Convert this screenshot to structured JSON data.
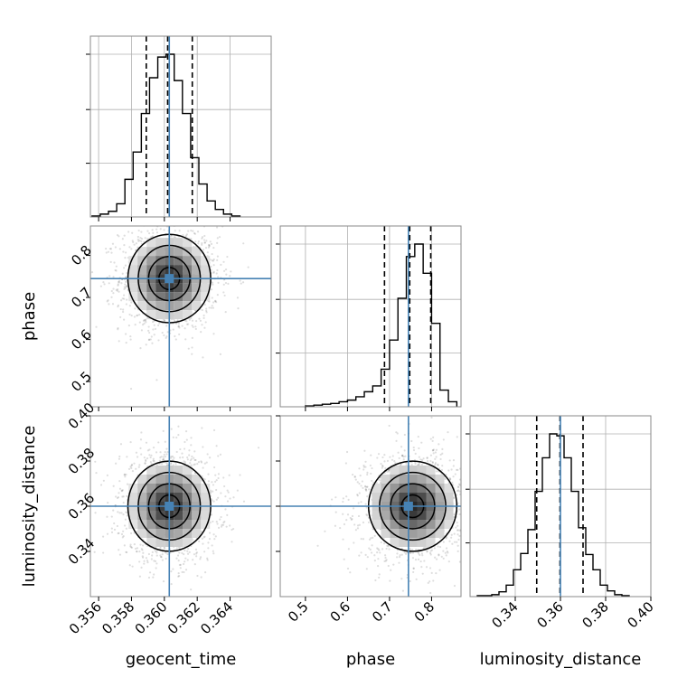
{
  "chart_data": {
    "type": "corner",
    "parameters": [
      {
        "name": "geocent_time",
        "label": "geocent_time",
        "range": [
          0.3555,
          0.3665
        ],
        "ticks": [
          0.356,
          0.358,
          0.36,
          0.362,
          0.364
        ],
        "tick_labels": [
          "0.356",
          "0.358",
          "0.360",
          "0.362",
          "0.364"
        ],
        "truth": 0.3603,
        "quantiles": [
          0.3589,
          0.3602,
          0.3617
        ]
      },
      {
        "name": "phase",
        "label": "phase",
        "range": [
          0.44,
          0.87
        ],
        "ticks": [
          0.5,
          0.6,
          0.7,
          0.8
        ],
        "tick_labels": [
          "0.5",
          "0.6",
          "0.7",
          "0.8"
        ],
        "truth": 0.745,
        "quantiles": [
          0.688,
          0.748,
          0.798
        ]
      },
      {
        "name": "luminosity_distance",
        "label": "luminosity_distance",
        "range": [
          0.32,
          0.4
        ],
        "ticks": [
          0.34,
          0.36,
          0.38,
          0.4
        ],
        "tick_labels": [
          "0.34",
          "0.36",
          "0.38",
          "0.40"
        ],
        "truth": 0.36,
        "quantiles": [
          0.3495,
          0.3598,
          0.37
        ]
      }
    ],
    "histograms": [
      {
        "parameter": "geocent_time",
        "bin_edges": [
          0.3556,
          0.3561,
          0.3566,
          0.3571,
          0.3576,
          0.3581,
          0.3586,
          0.3591,
          0.3596,
          0.3601,
          0.3606,
          0.3611,
          0.3616,
          0.3621,
          0.3626,
          0.3631,
          0.3636,
          0.3641,
          0.3646
        ],
        "counts": [
          1,
          3,
          6,
          14,
          40,
          69,
          110,
          148,
          170,
          173,
          145,
          110,
          63,
          35,
          17,
          8,
          3,
          1
        ]
      },
      {
        "parameter": "phase",
        "bin_edges": [
          0.5,
          0.52,
          0.54,
          0.56,
          0.58,
          0.6,
          0.62,
          0.64,
          0.66,
          0.68,
          0.7,
          0.72,
          0.74,
          0.76,
          0.78,
          0.8,
          0.82,
          0.84,
          0.86
        ],
        "counts": [
          1,
          2,
          3,
          4,
          6,
          8,
          12,
          18,
          25,
          45,
          80,
          130,
          180,
          195,
          160,
          100,
          20,
          6
        ]
      },
      {
        "parameter": "luminosity_distance",
        "bin_edges": [
          0.3232,
          0.3264,
          0.3296,
          0.3328,
          0.336,
          0.3392,
          0.3424,
          0.3456,
          0.3488,
          0.352,
          0.3552,
          0.3584,
          0.3616,
          0.3648,
          0.368,
          0.3712,
          0.3744,
          0.3776,
          0.3808,
          0.384,
          0.3872,
          0.3904
        ],
        "counts": [
          1,
          1,
          2,
          5,
          12,
          28,
          45,
          70,
          110,
          145,
          170,
          168,
          145,
          110,
          72,
          44,
          28,
          12,
          6,
          2,
          1
        ]
      }
    ],
    "joint": [
      {
        "x": "geocent_time",
        "y": "phase",
        "mean": [
          0.3603,
          0.745
        ],
        "sd": [
          0.0012,
          0.05
        ]
      },
      {
        "x": "geocent_time",
        "y": "luminosity_distance",
        "mean": [
          0.3603,
          0.36
        ],
        "sd": [
          0.0012,
          0.0095
        ]
      },
      {
        "x": "phase",
        "y": "luminosity_distance",
        "mean": [
          0.755,
          0.36
        ],
        "sd": [
          0.05,
          0.0095
        ]
      }
    ],
    "colors": {
      "truth": "#4682b4",
      "contour": "#000000",
      "grid": "#b0b0b0"
    }
  }
}
